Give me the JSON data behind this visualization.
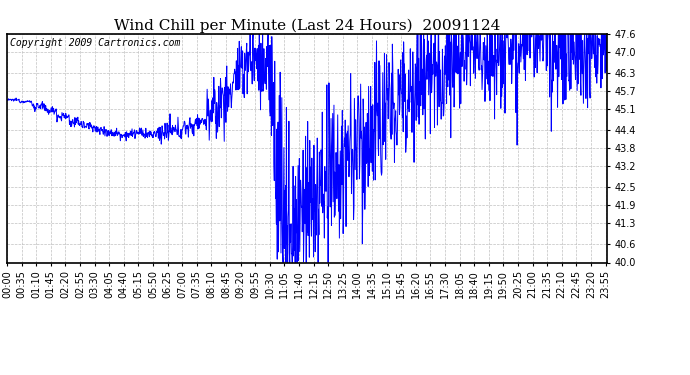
{
  "title": "Wind Chill per Minute (Last 24 Hours)  20091124",
  "copyright": "Copyright 2009 Cartronics.com",
  "ylim": [
    40.0,
    47.6
  ],
  "yticks": [
    40.0,
    40.6,
    41.3,
    41.9,
    42.5,
    43.2,
    43.8,
    44.4,
    45.1,
    45.7,
    46.3,
    47.0,
    47.6
  ],
  "line_color": "#0000FF",
  "background_color": "#FFFFFF",
  "grid_color": "#C0C0C0",
  "title_fontsize": 11,
  "copyright_fontsize": 7,
  "tick_fontsize": 7,
  "fig_width": 6.9,
  "fig_height": 3.75,
  "dpi": 100
}
